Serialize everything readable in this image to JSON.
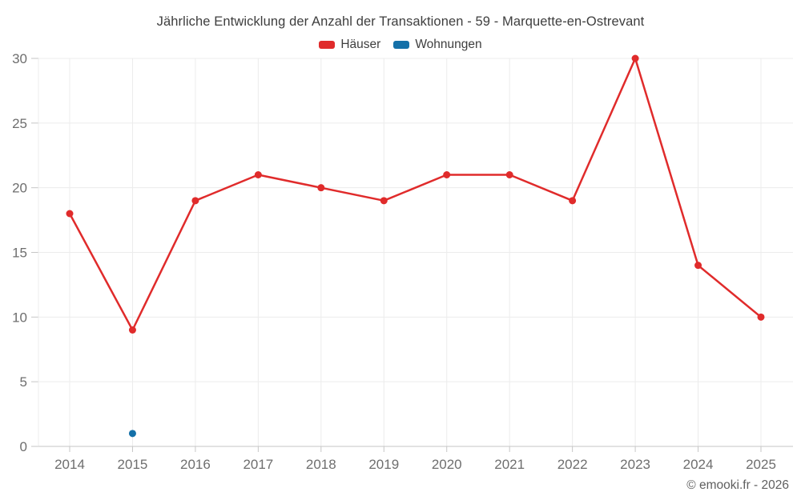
{
  "title": "Jährliche Entwicklung der Anzahl der Transaktionen - 59 - Marquette-en-Ostrevant",
  "legend": {
    "items": [
      {
        "label": "Häuser",
        "color": "#e02b2b"
      },
      {
        "label": "Wohnungen",
        "color": "#1470a8"
      }
    ]
  },
  "footer": {
    "text": "© emooki.fr - 2026"
  },
  "chart_data": {
    "type": "line",
    "title": "Jährliche Entwicklung der Anzahl der Transaktionen - 59 - Marquette-en-Ostrevant",
    "categories": [
      "2014",
      "2015",
      "2016",
      "2017",
      "2018",
      "2019",
      "2020",
      "2021",
      "2022",
      "2023",
      "2024",
      "2025"
    ],
    "series": [
      {
        "name": "Häuser",
        "color": "#e02b2b",
        "values": [
          18,
          9,
          19,
          21,
          20,
          19,
          21,
          21,
          19,
          30,
          14,
          10
        ]
      },
      {
        "name": "Wohnungen",
        "color": "#1470a8",
        "values": [
          null,
          1,
          null,
          null,
          null,
          null,
          null,
          null,
          null,
          null,
          null,
          null
        ]
      }
    ],
    "xlabel": "",
    "ylabel": "",
    "ylim": [
      0,
      30
    ],
    "yticks": [
      0,
      5,
      10,
      15,
      20,
      25,
      30
    ],
    "grid": true,
    "legend_position": "top"
  },
  "colors": {
    "background": "#ffffff",
    "grid": "#ececec",
    "axis": "#c6c6c6",
    "tick_label": "#6e6e6e",
    "title_text": "#3e3e3e",
    "footer_text": "#5f5f5f"
  }
}
